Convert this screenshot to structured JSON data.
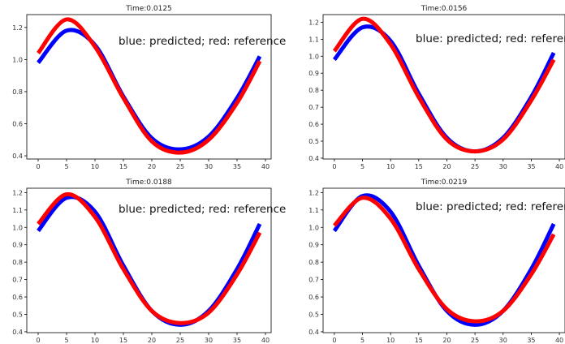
{
  "chart_data": [
    {
      "type": "line",
      "title": "Time:0.0125",
      "annotation": "blue: predicted; red: reference",
      "xlim": [
        -2,
        41
      ],
      "ylim": [
        0.38,
        1.28
      ],
      "xticks": [
        "0",
        "5",
        "10",
        "15",
        "20",
        "25",
        "30",
        "35",
        "40"
      ],
      "yticks": [
        "0.4",
        "0.6",
        "0.8",
        "1.0",
        "1.2"
      ],
      "x": [
        0,
        5,
        10,
        15,
        20,
        25,
        30,
        35,
        39
      ],
      "series": [
        {
          "color": "#0000ff",
          "values": [
            0.98,
            1.18,
            1.09,
            0.77,
            0.51,
            0.44,
            0.52,
            0.76,
            1.02
          ]
        },
        {
          "color": "#ff0000",
          "values": [
            1.04,
            1.25,
            1.08,
            0.76,
            0.49,
            0.42,
            0.5,
            0.73,
            0.99
          ]
        }
      ]
    },
    {
      "type": "line",
      "title": "Time:0.0156",
      "annotation": "blue: predicted; red: reference",
      "xlim": [
        -2,
        41
      ],
      "ylim": [
        0.395,
        1.245
      ],
      "xticks": [
        "0",
        "5",
        "10",
        "15",
        "20",
        "25",
        "30",
        "35",
        "40"
      ],
      "yticks": [
        "0.4",
        "0.5",
        "0.6",
        "0.7",
        "0.8",
        "0.9",
        "1.0",
        "1.1",
        "1.2"
      ],
      "x": [
        0,
        5,
        10,
        15,
        20,
        25,
        30,
        35,
        39
      ],
      "series": [
        {
          "color": "#0000ff",
          "values": [
            0.98,
            1.17,
            1.09,
            0.78,
            0.52,
            0.44,
            0.52,
            0.76,
            1.02
          ]
        },
        {
          "color": "#ff0000",
          "values": [
            1.03,
            1.22,
            1.07,
            0.76,
            0.51,
            0.44,
            0.51,
            0.74,
            0.98
          ]
        }
      ]
    },
    {
      "type": "line",
      "title": "Time:0.0188",
      "annotation": "blue: predicted; red: reference",
      "xlim": [
        -2,
        41
      ],
      "ylim": [
        0.395,
        1.225
      ],
      "xticks": [
        "0",
        "5",
        "10",
        "15",
        "20",
        "25",
        "30",
        "35",
        "40"
      ],
      "yticks": [
        "0.4",
        "0.5",
        "0.6",
        "0.7",
        "0.8",
        "0.9",
        "1.0",
        "1.1",
        "1.2"
      ],
      "x": [
        0,
        5,
        10,
        15,
        20,
        25,
        30,
        35,
        39
      ],
      "series": [
        {
          "color": "#0000ff",
          "values": [
            0.98,
            1.17,
            1.09,
            0.78,
            0.52,
            0.44,
            0.52,
            0.76,
            1.02
          ]
        },
        {
          "color": "#ff0000",
          "values": [
            1.02,
            1.19,
            1.06,
            0.76,
            0.52,
            0.45,
            0.51,
            0.73,
            0.97
          ]
        }
      ]
    },
    {
      "type": "line",
      "title": "Time:0.0219",
      "annotation": "blue: predicted; red: reference",
      "xlim": [
        -2,
        41
      ],
      "ylim": [
        0.395,
        1.225
      ],
      "xticks": [
        "0",
        "5",
        "10",
        "15",
        "20",
        "25",
        "30",
        "35",
        "40"
      ],
      "yticks": [
        "0.4",
        "0.5",
        "0.6",
        "0.7",
        "0.8",
        "0.9",
        "1.0",
        "1.1",
        "1.2"
      ],
      "x": [
        0,
        5,
        10,
        15,
        20,
        25,
        30,
        35,
        39
      ],
      "series": [
        {
          "color": "#0000ff",
          "values": [
            0.98,
            1.18,
            1.09,
            0.78,
            0.52,
            0.44,
            0.52,
            0.76,
            1.02
          ]
        },
        {
          "color": "#ff0000",
          "values": [
            1.01,
            1.17,
            1.05,
            0.76,
            0.53,
            0.46,
            0.52,
            0.73,
            0.96
          ]
        }
      ]
    }
  ]
}
